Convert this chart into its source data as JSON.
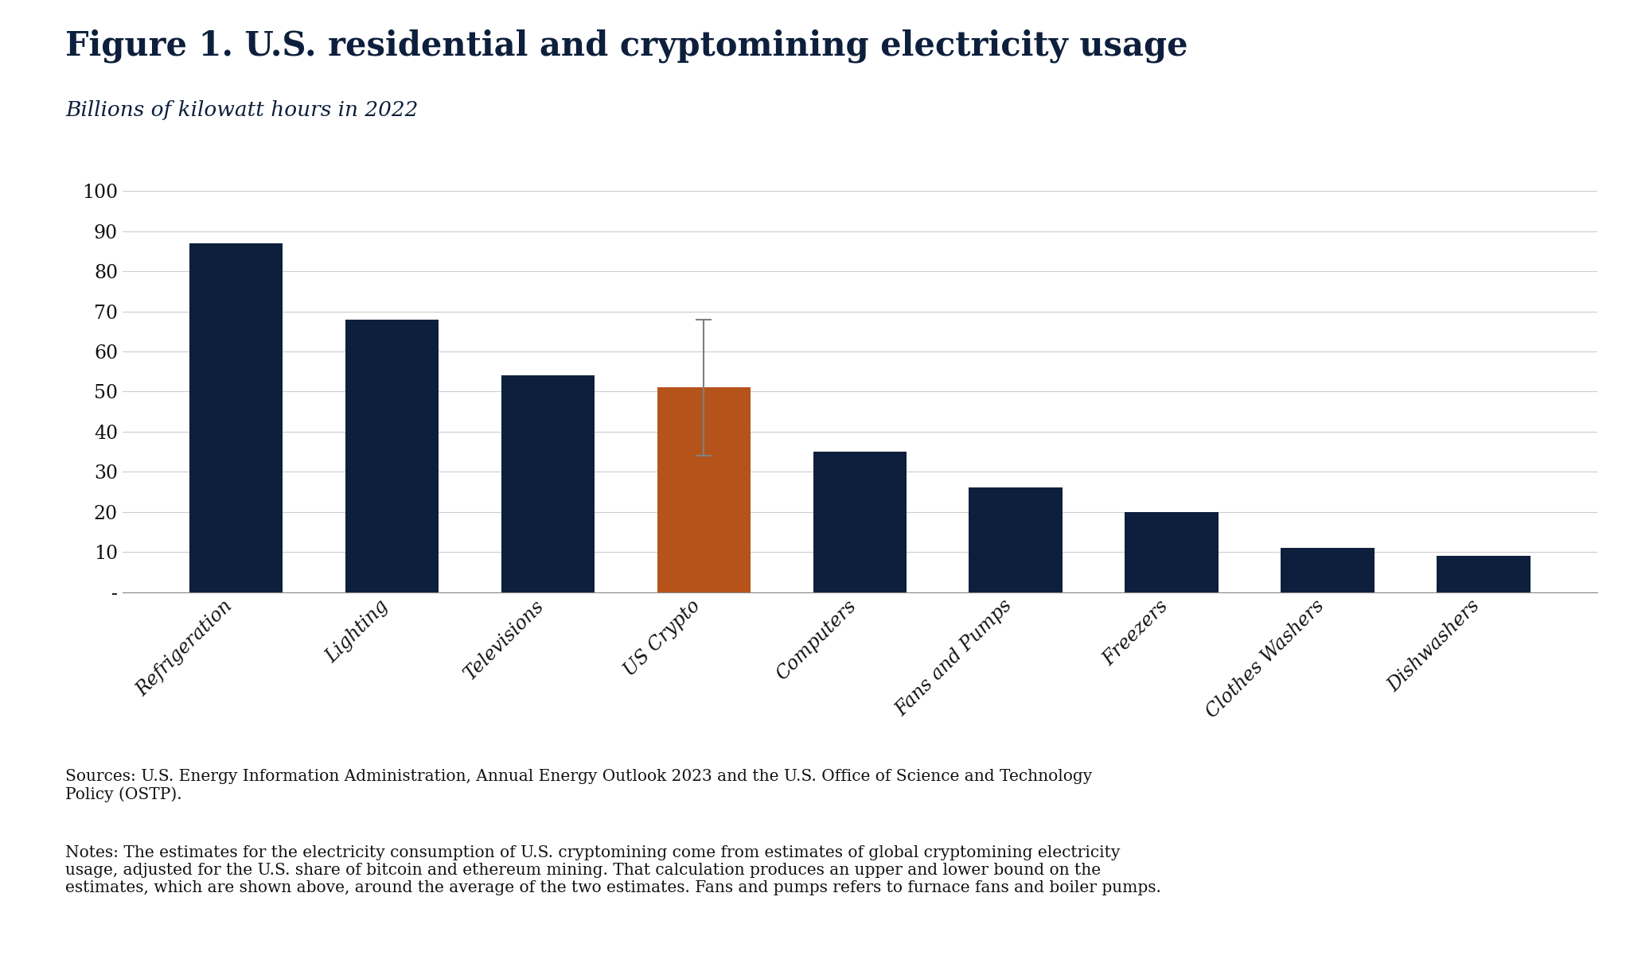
{
  "title": "Figure 1. U.S. residential and cryptomining electricity usage",
  "subtitle": "Billions of kilowatt hours in 2022",
  "categories": [
    "Refrigeration",
    "Lighting",
    "Televisions",
    "US Crypto",
    "Computers",
    "Fans and Pumps",
    "Freezers",
    "Clothes Washers",
    "Dishwashers"
  ],
  "values": [
    87,
    68,
    54,
    51,
    35,
    26,
    20,
    11,
    9
  ],
  "error_bar_value": 17,
  "bar_colors": [
    "#0d1f3c",
    "#0d1f3c",
    "#0d1f3c",
    "#b5531a",
    "#0d1f3c",
    "#0d1f3c",
    "#0d1f3c",
    "#0d1f3c",
    "#0d1f3c"
  ],
  "error_bar_color": "#808080",
  "ylim": [
    0,
    100
  ],
  "yticks": [
    0,
    10,
    20,
    30,
    40,
    50,
    60,
    70,
    80,
    90,
    100
  ],
  "ytick_labels": [
    "-",
    "10",
    "20",
    "30",
    "40",
    "50",
    "60",
    "70",
    "80",
    "90",
    "100"
  ],
  "background_color": "#ffffff",
  "grid_color": "#cccccc",
  "title_color": "#0d1f3c",
  "subtitle_color": "#0d1f3c",
  "title_fontsize": 30,
  "subtitle_fontsize": 19,
  "tick_fontsize": 17,
  "note_fontsize": 14.5,
  "sources_text": "Sources: U.S. Energy Information Administration, Annual Energy Outlook 2023 and the U.S. Office of Science and Technology\nPolicy (OSTP).",
  "notes_text": "Notes: The estimates for the electricity consumption of U.S. cryptomining come from estimates of global cryptomining electricity\nusage, adjusted for the U.S. share of bitcoin and ethereum mining. That calculation produces an upper and lower bound on the\nestimates, which are shown above, around the average of the two estimates. Fans and pumps refers to furnace fans and boiler pumps."
}
